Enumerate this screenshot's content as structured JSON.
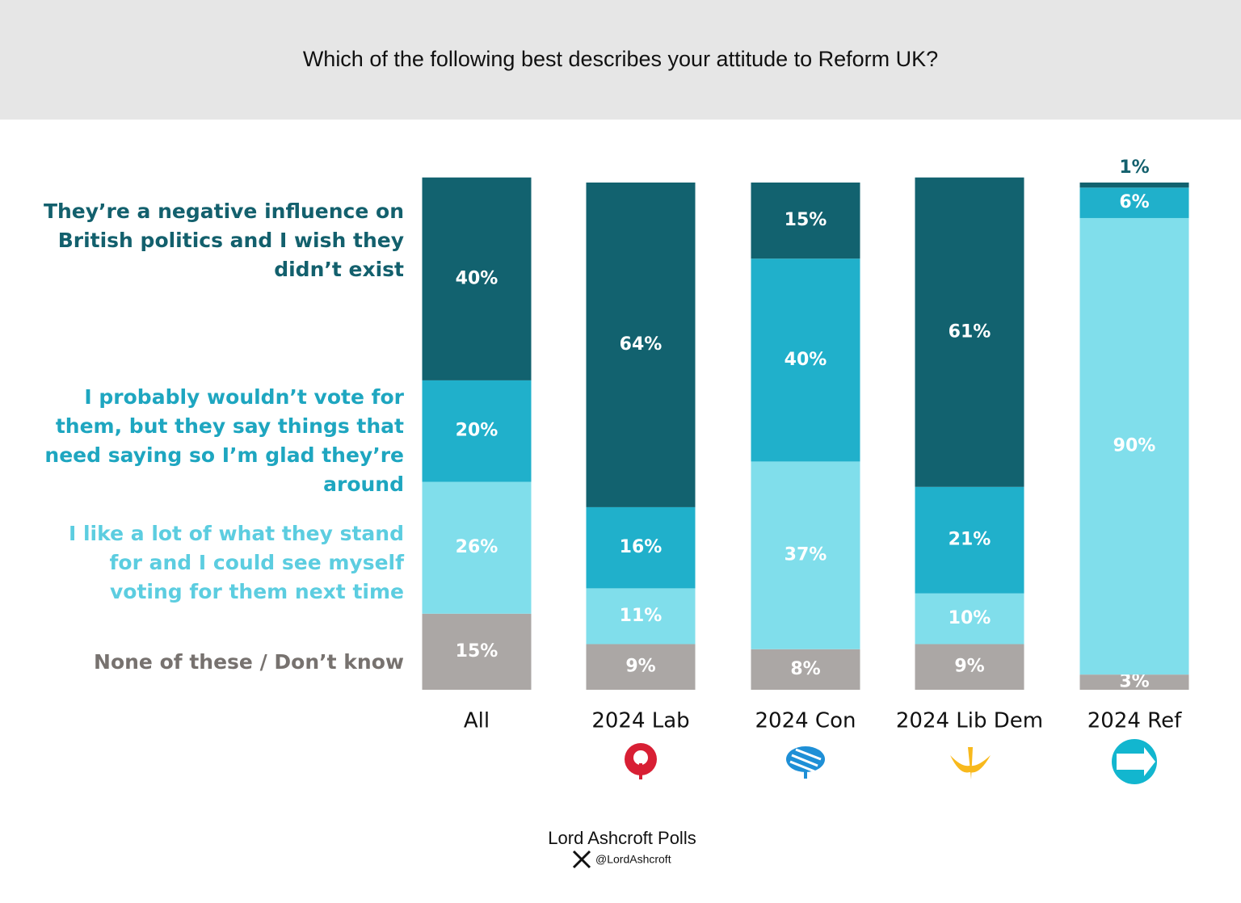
{
  "chart_data": {
    "type": "stacked-bar",
    "title": "Which of the following best describes your attitude to Reform UK?",
    "categories": [
      "All",
      "2024 Lab",
      "2024 Con",
      "2024 Lib Dem",
      "2024 Ref"
    ],
    "ylim": [
      0,
      100
    ],
    "series": [
      {
        "name": "None of these / Don’t know",
        "color": "#aba7a5",
        "text_color": "#77726f",
        "values": [
          15,
          9,
          8,
          9,
          3
        ],
        "value_labels": [
          "15%",
          "9%",
          "8%",
          "9%",
          "3%"
        ]
      },
      {
        "name": "I like a lot of what they stand for and I could see myself voting for them next time",
        "color": "#80deeb",
        "text_color": "#5ccde0",
        "values": [
          26,
          11,
          37,
          10,
          90
        ],
        "value_labels": [
          "26%",
          "11%",
          "37%",
          "10%",
          "90%"
        ]
      },
      {
        "name": "I probably wouldn’t vote for them, but they say things that need saying so I’m glad they’re around",
        "color": "#20b0cb",
        "text_color": "#1ea6c0",
        "values": [
          20,
          16,
          40,
          21,
          6
        ],
        "value_labels": [
          "20%",
          "16%",
          "40%",
          "21%",
          "6%"
        ]
      },
      {
        "name": "They’re a negative influence on British politics and I wish they didn’t exist",
        "color": "#12626f",
        "text_color": "#13606d",
        "values": [
          40,
          64,
          15,
          61,
          1
        ],
        "value_labels": [
          "40%",
          "64%",
          "15%",
          "61%",
          "1%"
        ]
      }
    ]
  },
  "footer": {
    "source": "Lord Ashcroft Polls",
    "handle": "@LordAshcroft"
  }
}
